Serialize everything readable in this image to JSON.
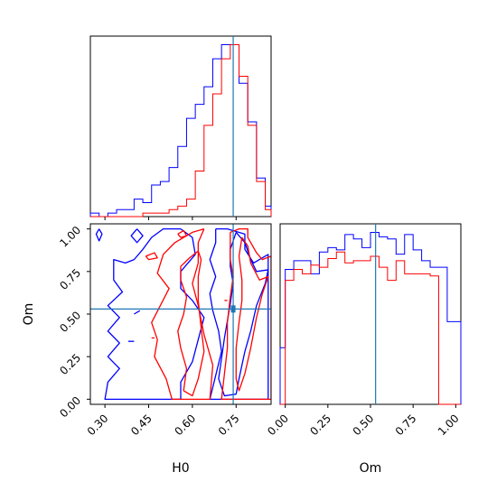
{
  "chart_data": [
    {
      "type": "histogram",
      "panel": "H0 marginal",
      "xlabel": "",
      "xlim": [
        0.25,
        0.87
      ],
      "truth": 0.74,
      "truth_color": "#1f77b4",
      "bin_edges": [
        0.25,
        0.28,
        0.31,
        0.34,
        0.37,
        0.4,
        0.43,
        0.46,
        0.49,
        0.52,
        0.55,
        0.58,
        0.61,
        0.64,
        0.67,
        0.7,
        0.73,
        0.76,
        0.79,
        0.82,
        0.85,
        0.87
      ],
      "series": [
        {
          "color": "#0000ff",
          "values": [
            1,
            0,
            1,
            2,
            2,
            5,
            4,
            9,
            10,
            14,
            20,
            28,
            32,
            37,
            45,
            49,
            49,
            38,
            27,
            11,
            3
          ]
        },
        {
          "color": "#ff0000",
          "values": [
            0,
            0,
            0,
            0,
            0,
            0,
            1,
            1,
            1,
            2,
            3,
            5,
            13,
            26,
            35,
            45,
            49,
            40,
            26,
            10,
            2
          ]
        }
      ]
    },
    {
      "type": "contour",
      "panel": "H0 vs Om",
      "xlabel": "H0",
      "ylabel": "Om",
      "xlim": [
        0.25,
        0.87
      ],
      "ylim": [
        -0.03,
        1.03
      ],
      "xticks": [
        "0.30",
        "0.45",
        "0.60",
        "0.75"
      ],
      "xtick_values": [
        0.3,
        0.45,
        0.6,
        0.75
      ],
      "yticks": [
        "0.00",
        "0.25",
        "0.50",
        "0.75",
        "1.00"
      ],
      "ytick_values": [
        0.0,
        0.25,
        0.5,
        0.75,
        1.0
      ],
      "truth": {
        "x": 0.74,
        "y": 0.53
      },
      "truth_point": {
        "x": 0.74,
        "y": 0.53
      },
      "contours": [
        {
          "color": "#0000ff",
          "level": "outer",
          "points": [
            [
              0.56,
              1.0
            ],
            [
              0.5,
              1.0
            ],
            [
              0.46,
              0.95
            ],
            [
              0.43,
              0.88
            ],
            [
              0.4,
              0.82
            ],
            [
              0.37,
              0.8
            ],
            [
              0.33,
              0.82
            ],
            [
              0.33,
              0.7
            ],
            [
              0.36,
              0.63
            ],
            [
              0.31,
              0.55
            ],
            [
              0.35,
              0.48
            ],
            [
              0.31,
              0.4
            ],
            [
              0.35,
              0.33
            ],
            [
              0.31,
              0.25
            ],
            [
              0.35,
              0.18
            ],
            [
              0.31,
              0.1
            ],
            [
              0.3,
              0.0
            ],
            [
              0.56,
              0.0
            ],
            [
              0.56,
              0.1
            ],
            [
              0.6,
              0.22
            ],
            [
              0.62,
              0.35
            ],
            [
              0.64,
              0.48
            ],
            [
              0.6,
              0.58
            ],
            [
              0.56,
              0.65
            ],
            [
              0.56,
              0.75
            ],
            [
              0.61,
              0.85
            ],
            [
              0.6,
              0.95
            ],
            [
              0.56,
              1.0
            ]
          ]
        },
        {
          "color": "#0000ff",
          "level": "outer-right",
          "points": [
            [
              0.68,
              1.0
            ],
            [
              0.72,
              1.0
            ],
            [
              0.78,
              0.97
            ],
            [
              0.78,
              0.88
            ],
            [
              0.81,
              0.8
            ],
            [
              0.83,
              0.82
            ],
            [
              0.86,
              0.85
            ],
            [
              0.86,
              0.0
            ],
            [
              0.66,
              0.0
            ],
            [
              0.68,
              0.14
            ],
            [
              0.7,
              0.28
            ],
            [
              0.69,
              0.4
            ],
            [
              0.67,
              0.52
            ],
            [
              0.66,
              0.62
            ],
            [
              0.68,
              0.72
            ],
            [
              0.66,
              0.82
            ],
            [
              0.68,
              0.92
            ],
            [
              0.68,
              1.0
            ]
          ]
        },
        {
          "color": "#0000ff",
          "level": "inner",
          "points": [
            [
              0.75,
              0.98
            ],
            [
              0.73,
              0.88
            ],
            [
              0.73,
              0.78
            ],
            [
              0.74,
              0.68
            ],
            [
              0.73,
              0.56
            ],
            [
              0.72,
              0.46
            ],
            [
              0.71,
              0.36
            ],
            [
              0.7,
              0.24
            ],
            [
              0.69,
              0.12
            ],
            [
              0.71,
              0.02
            ],
            [
              0.75,
              0.03
            ],
            [
              0.76,
              0.12
            ],
            [
              0.78,
              0.28
            ],
            [
              0.8,
              0.4
            ],
            [
              0.82,
              0.55
            ],
            [
              0.85,
              0.68
            ],
            [
              0.86,
              0.76
            ],
            [
              0.82,
              0.75
            ],
            [
              0.8,
              0.82
            ],
            [
              0.78,
              0.92
            ],
            [
              0.75,
              0.98
            ]
          ]
        },
        {
          "color": "#0000ff",
          "level": "island",
          "points": [
            [
              0.28,
              1.0
            ],
            [
              0.29,
              0.97
            ],
            [
              0.28,
              0.93
            ],
            [
              0.27,
              0.97
            ],
            [
              0.28,
              1.0
            ]
          ]
        },
        {
          "color": "#0000ff",
          "level": "island",
          "points": [
            [
              0.41,
              1.0
            ],
            [
              0.43,
              0.96
            ],
            [
              0.41,
              0.92
            ],
            [
              0.39,
              0.96
            ],
            [
              0.41,
              1.0
            ]
          ]
        },
        {
          "color": "#ff0000",
          "level": "outer",
          "points": [
            [
              0.64,
              1.0
            ],
            [
              0.6,
              0.98
            ],
            [
              0.54,
              0.92
            ],
            [
              0.5,
              0.85
            ],
            [
              0.48,
              0.74
            ],
            [
              0.52,
              0.65
            ],
            [
              0.49,
              0.55
            ],
            [
              0.46,
              0.45
            ],
            [
              0.48,
              0.35
            ],
            [
              0.47,
              0.25
            ],
            [
              0.51,
              0.12
            ],
            [
              0.53,
              0.0
            ],
            [
              0.66,
              0.0
            ],
            [
              0.67,
              0.2
            ],
            [
              0.64,
              0.38
            ],
            [
              0.62,
              0.55
            ],
            [
              0.6,
              0.68
            ],
            [
              0.62,
              0.8
            ],
            [
              0.62,
              0.92
            ],
            [
              0.64,
              1.0
            ]
          ]
        },
        {
          "color": "#ff0000",
          "level": "inner",
          "points": [
            [
              0.62,
              0.87
            ],
            [
              0.59,
              0.83
            ],
            [
              0.56,
              0.78
            ],
            [
              0.56,
              0.7
            ],
            [
              0.58,
              0.6
            ],
            [
              0.57,
              0.5
            ],
            [
              0.55,
              0.4
            ],
            [
              0.56,
              0.3
            ],
            [
              0.58,
              0.18
            ],
            [
              0.57,
              0.05
            ],
            [
              0.6,
              0.02
            ],
            [
              0.62,
              0.12
            ],
            [
              0.64,
              0.28
            ],
            [
              0.63,
              0.42
            ],
            [
              0.62,
              0.58
            ],
            [
              0.62,
              0.72
            ],
            [
              0.63,
              0.82
            ],
            [
              0.62,
              0.87
            ]
          ]
        },
        {
          "color": "#ff0000",
          "level": "right",
          "points": [
            [
              0.73,
              0.98
            ],
            [
              0.76,
              1.0
            ],
            [
              0.79,
              1.0
            ],
            [
              0.79,
              0.95
            ],
            [
              0.82,
              0.86
            ],
            [
              0.84,
              0.82
            ],
            [
              0.87,
              0.84
            ],
            [
              0.87,
              0.0
            ],
            [
              0.7,
              0.0
            ],
            [
              0.71,
              0.15
            ],
            [
              0.72,
              0.3
            ],
            [
              0.72,
              0.45
            ],
            [
              0.73,
              0.6
            ],
            [
              0.74,
              0.72
            ],
            [
              0.73,
              0.82
            ],
            [
              0.73,
              0.98
            ]
          ]
        },
        {
          "color": "#ff0000",
          "level": "right-inner",
          "points": [
            [
              0.77,
              0.95
            ],
            [
              0.76,
              0.84
            ],
            [
              0.77,
              0.7
            ],
            [
              0.77,
              0.58
            ],
            [
              0.76,
              0.45
            ],
            [
              0.75,
              0.3
            ],
            [
              0.75,
              0.12
            ],
            [
              0.76,
              0.05
            ],
            [
              0.78,
              0.15
            ],
            [
              0.8,
              0.3
            ],
            [
              0.82,
              0.48
            ],
            [
              0.84,
              0.62
            ],
            [
              0.86,
              0.72
            ],
            [
              0.83,
              0.7
            ],
            [
              0.8,
              0.8
            ],
            [
              0.79,
              0.9
            ],
            [
              0.77,
              0.95
            ]
          ]
        },
        {
          "color": "#ff0000",
          "level": "island",
          "points": [
            [
              0.44,
              0.84
            ],
            [
              0.47,
              0.86
            ],
            [
              0.48,
              0.83
            ],
            [
              0.45,
              0.82
            ],
            [
              0.44,
              0.84
            ]
          ]
        },
        {
          "color": "#ff0000",
          "level": "island",
          "points": [
            [
              0.55,
              0.97
            ],
            [
              0.57,
              0.99
            ],
            [
              0.58,
              0.96
            ],
            [
              0.56,
              0.95
            ],
            [
              0.55,
              0.97
            ]
          ]
        }
      ],
      "segments": [
        {
          "color": "#0000ff",
          "points": [
            [
              0.38,
              0.34
            ],
            [
              0.4,
              0.34
            ]
          ]
        },
        {
          "color": "#ff0000",
          "points": [
            [
              0.46,
              0.36
            ],
            [
              0.47,
              0.36
            ]
          ]
        },
        {
          "color": "#0000ff",
          "points": [
            [
              0.4,
              0.5
            ],
            [
              0.42,
              0.52
            ]
          ]
        },
        {
          "color": "#ff0000",
          "points": [
            [
              0.71,
              0.58
            ],
            [
              0.72,
              0.58
            ]
          ]
        }
      ]
    },
    {
      "type": "histogram",
      "panel": "Om marginal",
      "xlabel": "Om",
      "xlim": [
        -0.03,
        1.03
      ],
      "xticks": [
        "0.00",
        "0.25",
        "0.50",
        "0.75",
        "1.00"
      ],
      "xtick_values": [
        0.0,
        0.25,
        0.5,
        0.75,
        1.0
      ],
      "truth": 0.53,
      "truth_color": "#1f77b4",
      "bin_edges": [
        -0.03,
        0.0,
        0.05,
        0.1,
        0.15,
        0.2,
        0.25,
        0.3,
        0.35,
        0.4,
        0.45,
        0.5,
        0.55,
        0.6,
        0.65,
        0.7,
        0.75,
        0.8,
        0.85,
        0.9,
        0.95,
        1.0,
        1.03
      ],
      "series": [
        {
          "color": "#0000ff",
          "values": [
            26,
            62,
            66,
            66,
            60,
            70,
            72,
            71,
            78,
            76,
            72,
            79,
            77,
            76,
            69,
            78,
            71,
            66,
            63,
            63,
            38,
            38
          ]
        },
        {
          "color": "#ff0000",
          "values": [
            0,
            57,
            62,
            60,
            64,
            63,
            67,
            70,
            65,
            66,
            66,
            68,
            63,
            57,
            66,
            60,
            60,
            60,
            59,
            0,
            0,
            0
          ]
        }
      ]
    }
  ]
}
